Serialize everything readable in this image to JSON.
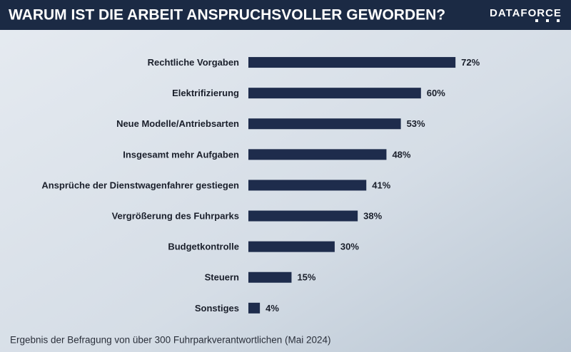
{
  "chart_data": {
    "type": "bar",
    "orientation": "horizontal",
    "title": "WARUM IST DIE ARBEIT ANSPRUCHSVOLLER GEWORDEN?",
    "logo": "DATAFORCE",
    "categories": [
      "Rechtliche Vorgaben",
      "Elektrifizierung",
      "Neue Modelle/Antriebsarten",
      "Insgesamt mehr Aufgaben",
      "Ansprüche der Dienstwagenfahrer gestiegen",
      "Vergrößerung des Fuhrparks",
      "Budgetkontrolle",
      "Steuern",
      "Sonstiges"
    ],
    "values": [
      72,
      60,
      53,
      48,
      41,
      38,
      30,
      15,
      4
    ],
    "value_labels": [
      "72%",
      "60%",
      "53%",
      "48%",
      "41%",
      "38%",
      "30%",
      "15%",
      "4%"
    ],
    "color": "#1e2c4c",
    "xlim": [
      0,
      100
    ],
    "footnote": "Ergebnis der Befragung von über 300 Fuhrparkverantwortlichen (Mai 2024)"
  }
}
